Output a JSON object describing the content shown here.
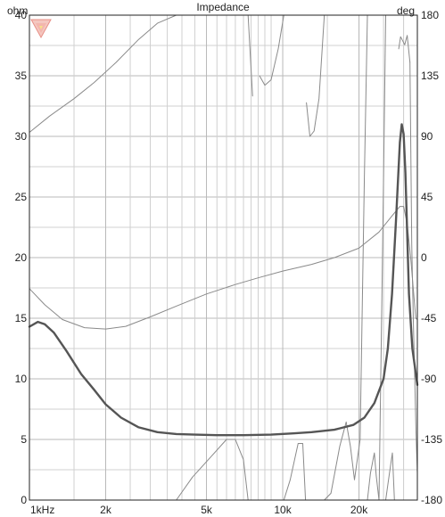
{
  "chart_data": {
    "type": "line",
    "title": "Impedance",
    "left_unit": "ohm",
    "right_unit": "deg",
    "x_scale": "log",
    "x_range_hz": [
      1000,
      34000
    ],
    "x_ticks": [
      {
        "hz": 1000,
        "label": "1kHz"
      },
      {
        "hz": 2000,
        "label": "2k"
      },
      {
        "hz": 5000,
        "label": "5k"
      },
      {
        "hz": 10000,
        "label": "10k"
      },
      {
        "hz": 20000,
        "label": "20k"
      }
    ],
    "y_left_range": [
      0,
      40
    ],
    "y_left_ticks": [
      "0",
      "5",
      "10",
      "15",
      "20",
      "25",
      "30",
      "35",
      "40"
    ],
    "y_right_range": [
      -180,
      180
    ],
    "y_right_ticks": [
      "-180",
      "-135",
      "-90",
      "-45",
      "0",
      "45",
      "90",
      "135",
      "180"
    ],
    "grid": true,
    "colors": {
      "magnitude": "#555555",
      "phase": "#8a8a8a",
      "grid": "#d0d0d0",
      "border": "#222222"
    },
    "series": [
      {
        "axis": "left",
        "x_hz": [
          1000,
          1080,
          1150,
          1250,
          1400,
          1600,
          1800,
          2000,
          2300,
          2700,
          3200,
          3800,
          4500,
          5500,
          7000,
          9000,
          11000,
          13000,
          16000,
          19000,
          21000,
          23000,
          25000,
          26000,
          27000,
          28000,
          29000,
          29500,
          30000,
          30500,
          31000,
          31500,
          32500,
          34000
        ],
        "values": [
          14.3,
          14.7,
          14.5,
          13.8,
          12.3,
          10.4,
          9.1,
          7.9,
          6.8,
          6.0,
          5.6,
          5.45,
          5.4,
          5.35,
          5.35,
          5.4,
          5.5,
          5.6,
          5.8,
          6.2,
          6.8,
          8.0,
          10.0,
          12.5,
          17.0,
          23.0,
          29.5,
          31.0,
          30.2,
          27.0,
          22.0,
          17.0,
          12.5,
          9.5
        ]
      },
      {
        "axis": "right",
        "segments": [
          {
            "x_hz": [
              1000,
              1200,
              1500,
              1800,
              2200,
              2700,
              3200,
              3800
            ],
            "values": [
              93,
              105,
              118,
              130,
              145,
              162,
              174,
              180
            ]
          },
          {
            "x_hz": [
              3800,
              4400,
              5200,
              6000,
              6500,
              7000,
              7300
            ],
            "values": [
              -180,
              -163,
              -148,
              -135,
              -135,
              -150,
              -180
            ]
          },
          {
            "x_hz": [
              7300,
              7600
            ],
            "values": [
              180,
              120
            ]
          },
          {
            "x_hz": [
              8100,
              8500,
              9000,
              9600,
              10100
            ],
            "values": [
              135,
              128,
              132,
              155,
              180
            ]
          },
          {
            "x_hz": [
              10100,
              10700,
              11500,
              12000,
              12300
            ],
            "values": [
              -180,
              -165,
              -138,
              -138,
              -180
            ]
          },
          {
            "x_hz": [
              12400,
              12800,
              13300,
              13900,
              14600
            ],
            "values": [
              115,
              90,
              94,
              118,
              180
            ]
          },
          {
            "x_hz": [
              14600,
              15500,
              16800,
              17800,
              18500,
              19200,
              20200
            ],
            "values": [
              -180,
              -175,
              -140,
              -122,
              -140,
              -165,
              -135
            ]
          },
          {
            "x_hz": [
              20200,
              21000,
              21600
            ],
            "values": [
              -135,
              60,
              180
            ]
          },
          {
            "x_hz": [
              21600,
              22200,
              23000,
              23400,
              24000
            ],
            "values": [
              -180,
              -160,
              -145,
              -162,
              -180
            ]
          },
          {
            "x_hz": [
              24000,
              24800,
              25500
            ],
            "values": [
              -180,
              10,
              180
            ]
          },
          {
            "x_hz": [
              25500,
              26300,
              27100,
              27600
            ],
            "values": [
              -180,
              -162,
              -145,
              -180
            ]
          },
          {
            "x_hz": [
              28700,
              29200,
              30300,
              31000,
              31800
            ],
            "values": [
              155,
              164,
              158,
              165,
              145
            ]
          },
          {
            "x_hz": [
              31800,
              32300,
              32800,
              33200,
              33600,
              34000
            ],
            "values": [
              145,
              10,
              -50,
              -90,
              -130,
              -160
            ]
          }
        ]
      },
      {
        "axis": "right",
        "x_hz": [
          1000,
          1150,
          1350,
          1650,
          2000,
          2400,
          3000,
          3800,
          5000,
          6500,
          8000,
          10000,
          13000,
          16000,
          20000,
          24000,
          27000,
          29000,
          30000,
          31000,
          32000,
          33000,
          33500,
          34000
        ],
        "values": [
          -23,
          -35,
          -46,
          -52,
          -53,
          -51,
          -44,
          -36,
          -27,
          -20,
          -15,
          -10,
          -5,
          0,
          7,
          19,
          31,
          38,
          38,
          25,
          0,
          -30,
          -45,
          -46
        ]
      }
    ]
  }
}
